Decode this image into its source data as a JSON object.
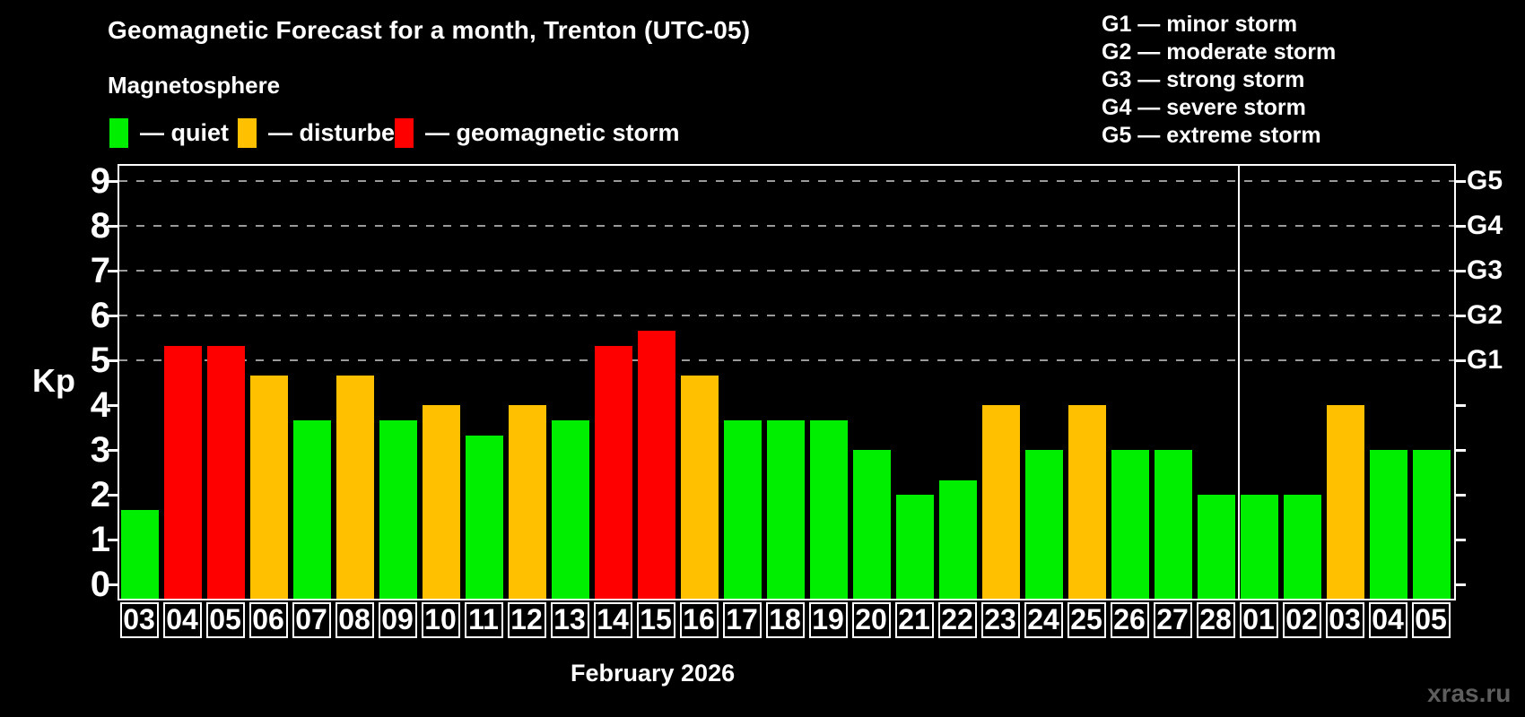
{
  "header": {
    "title": "Geomagnetic Forecast for a month, Trenton (UTC-05)",
    "subtitle": "Magnetosphere"
  },
  "legend": [
    {
      "key": "quiet",
      "label": "— quiet",
      "color": "#00ee00"
    },
    {
      "key": "disturbed",
      "label": "— disturbed",
      "color": "#ffc000"
    },
    {
      "key": "storm",
      "label": "— geomagnetic storm",
      "color": "#ff0000"
    }
  ],
  "g_legend": [
    "G1 — minor storm",
    "G2 — moderate storm",
    "G3 — strong storm",
    "G4 — severe storm",
    "G5 — extreme storm"
  ],
  "chart_data": {
    "type": "bar",
    "title": "Geomagnetic Forecast for a month, Trenton (UTC-05)",
    "ylabel": "Kp",
    "xlabel": "February 2026",
    "ylim": [
      -0.33,
      9.4
    ],
    "yticks": [
      0,
      1,
      2,
      3,
      4,
      5,
      6,
      7,
      8,
      9
    ],
    "gridlines": [
      5,
      6,
      7,
      8,
      9
    ],
    "grid": "dashed horizontal at storm levels only",
    "legend_position": "top",
    "right_axis": [
      {
        "kp": 5,
        "label": "G1"
      },
      {
        "kp": 6,
        "label": "G2"
      },
      {
        "kp": 7,
        "label": "G3"
      },
      {
        "kp": 8,
        "label": "G4"
      },
      {
        "kp": 9,
        "label": "G5"
      }
    ],
    "month_separator_index": 26,
    "bars": [
      {
        "day": "03",
        "kp": 1.67,
        "status": "quiet"
      },
      {
        "day": "04",
        "kp": 5.33,
        "status": "storm"
      },
      {
        "day": "05",
        "kp": 5.33,
        "status": "storm"
      },
      {
        "day": "06",
        "kp": 4.67,
        "status": "disturbed"
      },
      {
        "day": "07",
        "kp": 3.67,
        "status": "quiet"
      },
      {
        "day": "08",
        "kp": 4.67,
        "status": "disturbed"
      },
      {
        "day": "09",
        "kp": 3.67,
        "status": "quiet"
      },
      {
        "day": "10",
        "kp": 4.0,
        "status": "disturbed"
      },
      {
        "day": "11",
        "kp": 3.33,
        "status": "quiet"
      },
      {
        "day": "12",
        "kp": 4.0,
        "status": "disturbed"
      },
      {
        "day": "13",
        "kp": 3.67,
        "status": "quiet"
      },
      {
        "day": "14",
        "kp": 5.33,
        "status": "storm"
      },
      {
        "day": "15",
        "kp": 5.67,
        "status": "storm"
      },
      {
        "day": "16",
        "kp": 4.67,
        "status": "disturbed"
      },
      {
        "day": "17",
        "kp": 3.67,
        "status": "quiet"
      },
      {
        "day": "18",
        "kp": 3.67,
        "status": "quiet"
      },
      {
        "day": "19",
        "kp": 3.67,
        "status": "quiet"
      },
      {
        "day": "20",
        "kp": 3.0,
        "status": "quiet"
      },
      {
        "day": "21",
        "kp": 2.0,
        "status": "quiet"
      },
      {
        "day": "22",
        "kp": 2.33,
        "status": "quiet"
      },
      {
        "day": "23",
        "kp": 4.0,
        "status": "disturbed"
      },
      {
        "day": "24",
        "kp": 3.0,
        "status": "quiet"
      },
      {
        "day": "25",
        "kp": 4.0,
        "status": "disturbed"
      },
      {
        "day": "26",
        "kp": 3.0,
        "status": "quiet"
      },
      {
        "day": "27",
        "kp": 3.0,
        "status": "quiet"
      },
      {
        "day": "28",
        "kp": 2.0,
        "status": "quiet"
      },
      {
        "day": "01",
        "kp": 2.0,
        "status": "quiet"
      },
      {
        "day": "02",
        "kp": 2.0,
        "status": "quiet"
      },
      {
        "day": "03",
        "kp": 4.0,
        "status": "disturbed"
      },
      {
        "day": "04",
        "kp": 3.0,
        "status": "quiet"
      },
      {
        "day": "05",
        "kp": 3.0,
        "status": "quiet"
      }
    ]
  },
  "footer": {
    "watermark": "xras.ru"
  }
}
